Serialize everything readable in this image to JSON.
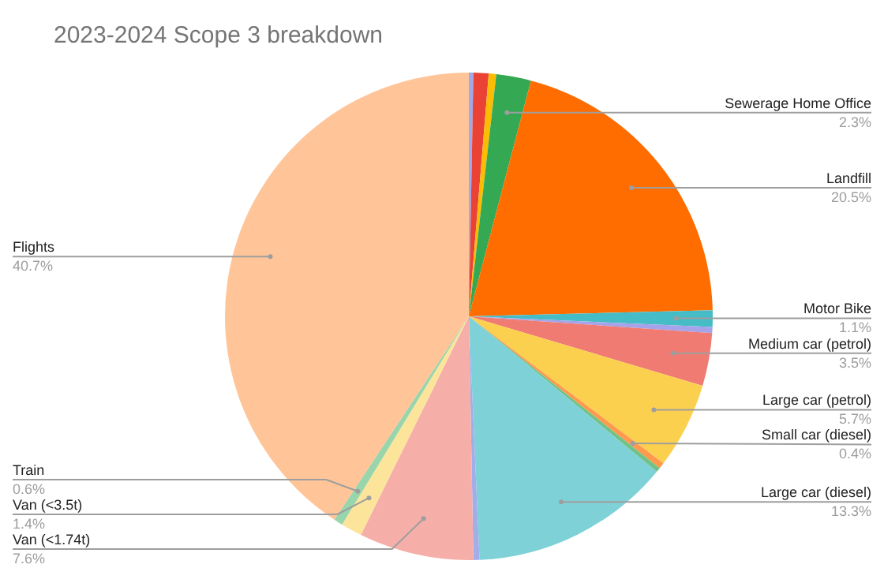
{
  "chart_data": {
    "type": "pie",
    "title": "2023-2024 Scope 3 breakdown",
    "categories": [
      null,
      null,
      null,
      "Sewerage Home Office",
      "Landfill",
      "Motor Bike",
      null,
      "Medium car (petrol)",
      "Large car (petrol)",
      "Small car (diesel)",
      null,
      "Large car (diesel)",
      null,
      "Van (<1.74t)",
      "Van (<3.5t)",
      "Train",
      "Flights"
    ],
    "values": [
      0.3,
      1.0,
      0.5,
      2.3,
      20.5,
      1.1,
      0.4,
      3.5,
      5.7,
      0.4,
      0.3,
      13.3,
      0.4,
      7.6,
      1.4,
      0.6,
      40.7
    ],
    "value_labels": [
      null,
      null,
      null,
      "2.3%",
      "20.5%",
      "1.1%",
      null,
      "3.5%",
      "5.7%",
      "0.4%",
      null,
      "13.3%",
      null,
      "7.6%",
      "1.4%",
      "0.6%",
      "40.7%"
    ],
    "colors": [
      "#9fa8ea",
      "#ea4335",
      "#fbbc04",
      "#34a853",
      "#ff6d01",
      "#46bdc6",
      "#a5a3ea",
      "#f07b72",
      "#fcd04f",
      "#ff994d",
      "#71c287",
      "#7ed1d7",
      "#a2aee8",
      "#f6aea9",
      "#fde49b",
      "#99d5ab",
      "#ffc599"
    ],
    "legend": false
  }
}
